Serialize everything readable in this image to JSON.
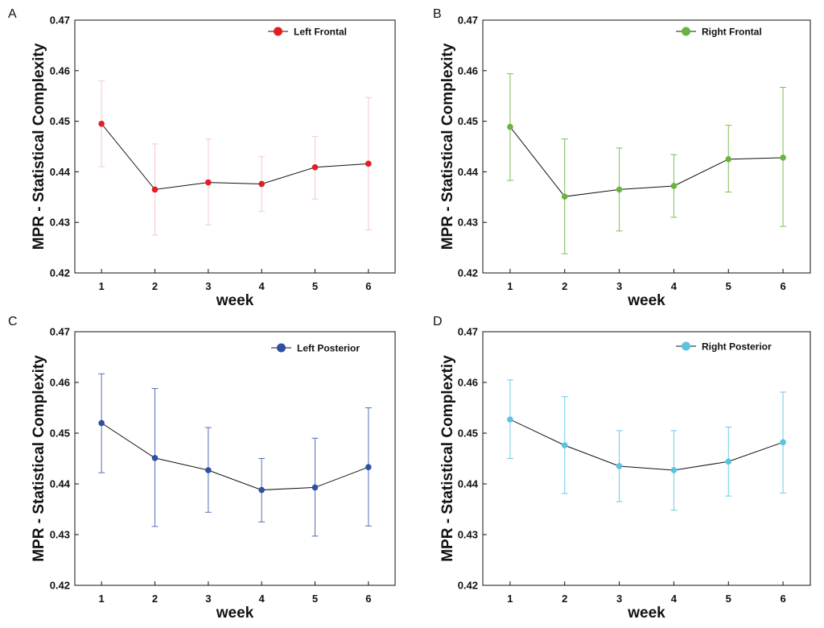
{
  "chart_data": [
    {
      "panel": "A",
      "type": "line",
      "xlabel": "week",
      "ylabel": "MPR - Statistical  Complexity",
      "xticks": [
        "1",
        "2",
        "3",
        "4",
        "5",
        "6"
      ],
      "yticks": [
        "0.42",
        "0.43",
        "0.44",
        "0.45",
        "0.46",
        "0.47"
      ],
      "xlim": [
        0.5,
        6.5
      ],
      "ylim": [
        0.42,
        0.47
      ],
      "series": [
        {
          "name": "Left  Frontal",
          "color": "#e31d23",
          "error_color": "#f6c9cd",
          "x": [
            1,
            2,
            3,
            4,
            5,
            6
          ],
          "values": [
            0.4495,
            0.4365,
            0.4379,
            0.4376,
            0.4409,
            0.4416
          ],
          "err_low": [
            0.441,
            0.4275,
            0.4295,
            0.4322,
            0.4346,
            0.4285
          ],
          "err_high": [
            0.458,
            0.4455,
            0.4465,
            0.443,
            0.447,
            0.4547
          ]
        }
      ]
    },
    {
      "panel": "B",
      "type": "line",
      "xlabel": "week",
      "ylabel": "MPR - Statistical  Complexity",
      "xticks": [
        "1",
        "2",
        "3",
        "4",
        "5",
        "6"
      ],
      "yticks": [
        "0.42",
        "0.43",
        "0.44",
        "0.45",
        "0.46",
        "0.47"
      ],
      "xlim": [
        0.5,
        6.5
      ],
      "ylim": [
        0.42,
        0.47
      ],
      "series": [
        {
          "name": "Right  Frontal",
          "color": "#6ab43e",
          "error_color": "#7cbf55",
          "x": [
            1,
            2,
            3,
            4,
            5,
            6
          ],
          "values": [
            0.4489,
            0.4351,
            0.4365,
            0.4372,
            0.4425,
            0.4428
          ],
          "err_low": [
            0.4383,
            0.4238,
            0.4283,
            0.431,
            0.436,
            0.4292
          ],
          "err_high": [
            0.4594,
            0.4465,
            0.4447,
            0.4434,
            0.4492,
            0.4567
          ]
        }
      ]
    },
    {
      "panel": "C",
      "type": "line",
      "xlabel": "week",
      "ylabel": "MPR - Statistical  Complexity",
      "xticks": [
        "1",
        "2",
        "3",
        "4",
        "5",
        "6"
      ],
      "yticks": [
        "0.42",
        "0.43",
        "0.44",
        "0.45",
        "0.46",
        "0.47"
      ],
      "xlim": [
        0.5,
        6.5
      ],
      "ylim": [
        0.42,
        0.47
      ],
      "series": [
        {
          "name": "Left Posterior",
          "color": "#2f4fa2",
          "error_color": "#5670b3",
          "x": [
            1,
            2,
            3,
            4,
            5,
            6
          ],
          "values": [
            0.452,
            0.4451,
            0.4427,
            0.4388,
            0.4393,
            0.4433
          ],
          "err_low": [
            0.4422,
            0.4316,
            0.4344,
            0.4325,
            0.4297,
            0.4317
          ],
          "err_high": [
            0.4617,
            0.4588,
            0.4511,
            0.445,
            0.449,
            0.455
          ]
        }
      ]
    },
    {
      "panel": "D",
      "type": "line",
      "xlabel": "week",
      "ylabel": "MPR - Statistical  Complextiy",
      "xticks": [
        "1",
        "2",
        "3",
        "4",
        "5",
        "6"
      ],
      "yticks": [
        "0.42",
        "0.43",
        "0.44",
        "0.45",
        "0.46",
        "0.47"
      ],
      "xlim": [
        0.5,
        6.5
      ],
      "ylim": [
        0.42,
        0.47
      ],
      "series": [
        {
          "name": "Right Posterior",
          "color": "#5bc3e1",
          "error_color": "#6ccbe5",
          "x": [
            1,
            2,
            3,
            4,
            5,
            6
          ],
          "values": [
            0.4527,
            0.4476,
            0.4435,
            0.4427,
            0.4444,
            0.4482
          ],
          "err_low": [
            0.445,
            0.4381,
            0.4365,
            0.4348,
            0.4376,
            0.4382
          ],
          "err_high": [
            0.4605,
            0.4572,
            0.4505,
            0.4505,
            0.4512,
            0.4581
          ]
        }
      ]
    }
  ]
}
